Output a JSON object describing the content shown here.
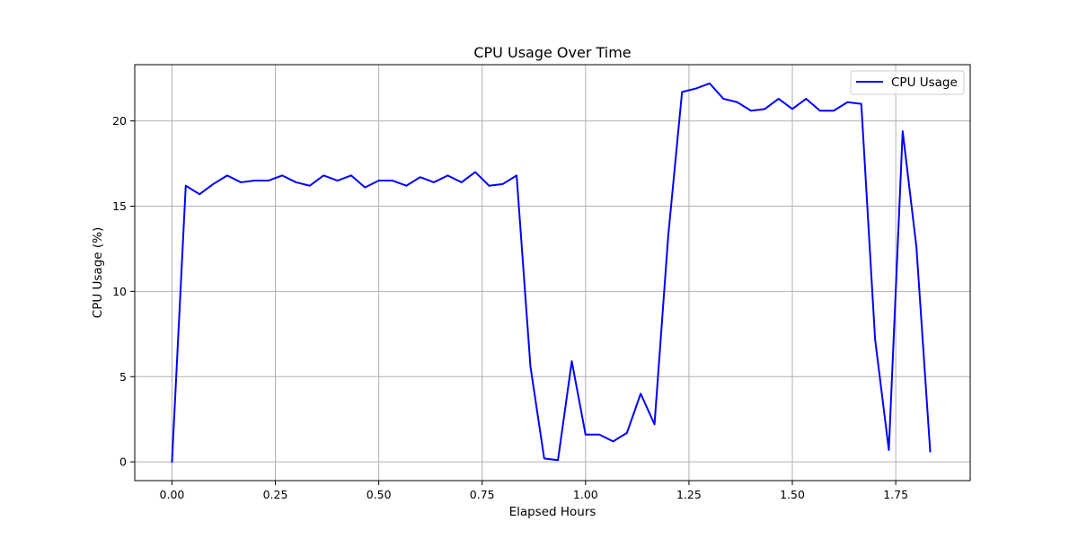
{
  "chart_data": {
    "type": "line",
    "title": "CPU Usage Over Time",
    "xlabel": "Elapsed Hours",
    "ylabel": "CPU Usage (%)",
    "xlim": [
      -0.09,
      1.93
    ],
    "ylim": [
      -1.1,
      23.3
    ],
    "xticks": [
      0.0,
      0.25,
      0.5,
      0.75,
      1.0,
      1.25,
      1.5,
      1.75
    ],
    "xtick_labels": [
      "0.00",
      "0.25",
      "0.50",
      "0.75",
      "1.00",
      "1.25",
      "1.50",
      "1.75"
    ],
    "yticks": [
      0,
      5,
      10,
      15,
      20
    ],
    "ytick_labels": [
      "0",
      "5",
      "10",
      "15",
      "20"
    ],
    "grid": true,
    "legend_position": "top-right",
    "series": [
      {
        "name": "CPU Usage",
        "color": "#0000ff",
        "x": [
          0.0,
          0.0333,
          0.0667,
          0.1,
          0.1333,
          0.1667,
          0.2,
          0.2333,
          0.2667,
          0.3,
          0.3333,
          0.3667,
          0.4,
          0.4333,
          0.4667,
          0.5,
          0.5333,
          0.5667,
          0.6,
          0.6333,
          0.6667,
          0.7,
          0.7333,
          0.7667,
          0.8,
          0.8333,
          0.8667,
          0.9,
          0.9333,
          0.9667,
          1.0,
          1.0333,
          1.0667,
          1.1,
          1.1333,
          1.1667,
          1.2,
          1.2333,
          1.2667,
          1.3,
          1.3333,
          1.3667,
          1.4,
          1.4333,
          1.4667,
          1.5,
          1.5333,
          1.5667,
          1.6,
          1.6333,
          1.6667,
          1.7,
          1.7333,
          1.7667,
          1.8,
          1.8333
        ],
        "y": [
          0.0,
          16.2,
          15.7,
          16.3,
          16.8,
          16.4,
          16.5,
          16.5,
          16.8,
          16.4,
          16.2,
          16.8,
          16.5,
          16.8,
          16.1,
          16.5,
          16.5,
          16.2,
          16.7,
          16.4,
          16.8,
          16.4,
          17.0,
          16.2,
          16.3,
          16.8,
          5.6,
          0.2,
          0.1,
          5.9,
          1.6,
          1.6,
          1.2,
          1.7,
          4.0,
          2.2,
          13.3,
          21.7,
          21.9,
          22.2,
          21.3,
          21.1,
          20.6,
          20.7,
          21.3,
          20.7,
          21.3,
          20.6,
          20.6,
          21.1,
          21.0,
          7.2,
          0.7,
          19.4,
          12.6,
          0.6
        ]
      }
    ]
  }
}
